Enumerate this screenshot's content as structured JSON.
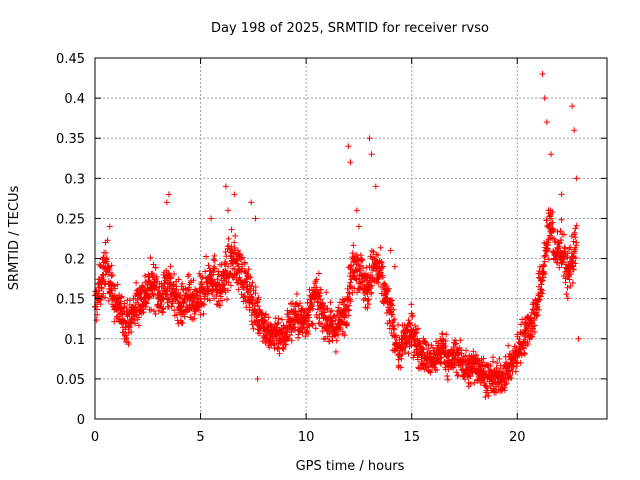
{
  "chart_data": {
    "type": "scatter",
    "title": "Day 198 of 2025, SRMTID for receiver rvso",
    "xlabel": "GPS time / hours",
    "ylabel": "SRMTID / TECUs",
    "xlim": [
      0,
      24.25
    ],
    "ylim": [
      0,
      0.45
    ],
    "xticks": [
      0,
      5,
      10,
      15,
      20
    ],
    "xtick_labels": [
      "0",
      "5",
      "10",
      "15",
      "20"
    ],
    "yticks": [
      0,
      0.05,
      0.1,
      0.15,
      0.2,
      0.25,
      0.3,
      0.35,
      0.4,
      0.45
    ],
    "ytick_labels": [
      "0",
      "0.05",
      "0.1",
      "0.15",
      "0.2",
      "0.25",
      "0.3",
      "0.35",
      "0.4",
      "0.45"
    ],
    "grid": true,
    "marker": "plus",
    "series": [
      {
        "name": "SRMTID",
        "color": "#ff0000",
        "x": [
          0.0,
          0.2,
          0.4,
          0.6,
          0.8,
          1.0,
          1.3,
          1.6,
          1.9,
          2.2,
          2.5,
          2.8,
          3.1,
          3.3,
          3.5,
          3.8,
          4.1,
          4.4,
          4.7,
          5.0,
          5.3,
          5.6,
          5.9,
          6.2,
          6.5,
          6.8,
          7.1,
          7.4,
          7.7,
          8.0,
          8.3,
          8.6,
          8.9,
          9.2,
          9.5,
          9.8,
          10.1,
          10.4,
          10.7,
          11.0,
          11.3,
          11.6,
          11.9,
          12.1,
          12.3,
          12.6,
          12.9,
          13.2,
          13.5,
          13.8,
          14.1,
          14.4,
          14.7,
          15.0,
          15.3,
          15.6,
          15.9,
          16.2,
          16.5,
          16.8,
          17.1,
          17.4,
          17.7,
          18.0,
          18.3,
          18.6,
          18.9,
          19.2,
          19.5,
          19.8,
          20.1,
          20.4,
          20.7,
          21.0,
          21.2,
          21.4,
          21.6,
          21.8,
          22.0,
          22.2,
          22.4,
          22.6,
          22.8
        ],
        "y": [
          0.14,
          0.16,
          0.18,
          0.19,
          0.16,
          0.14,
          0.13,
          0.12,
          0.14,
          0.15,
          0.16,
          0.17,
          0.15,
          0.16,
          0.17,
          0.15,
          0.14,
          0.15,
          0.14,
          0.15,
          0.17,
          0.18,
          0.16,
          0.18,
          0.2,
          0.19,
          0.17,
          0.15,
          0.13,
          0.12,
          0.1,
          0.11,
          0.1,
          0.12,
          0.13,
          0.12,
          0.13,
          0.15,
          0.14,
          0.12,
          0.11,
          0.12,
          0.14,
          0.17,
          0.2,
          0.18,
          0.16,
          0.19,
          0.18,
          0.15,
          0.12,
          0.08,
          0.1,
          0.11,
          0.09,
          0.08,
          0.07,
          0.08,
          0.09,
          0.07,
          0.08,
          0.07,
          0.06,
          0.07,
          0.06,
          0.05,
          0.05,
          0.05,
          0.06,
          0.07,
          0.09,
          0.11,
          0.12,
          0.15,
          0.18,
          0.22,
          0.25,
          0.2,
          0.22,
          0.2,
          0.18,
          0.2,
          0.22
        ]
      }
    ],
    "extra_points": {
      "x": [
        0.5,
        0.7,
        3.4,
        3.5,
        5.5,
        6.2,
        6.3,
        6.6,
        7.4,
        7.6,
        7.7,
        12.0,
        12.1,
        12.4,
        12.5,
        13.0,
        13.1,
        13.3,
        14.0,
        14.2,
        21.2,
        21.3,
        21.4,
        21.6,
        22.1,
        22.6,
        22.7,
        22.8,
        22.9
      ],
      "y": [
        0.22,
        0.24,
        0.27,
        0.28,
        0.25,
        0.29,
        0.26,
        0.28,
        0.27,
        0.25,
        0.05,
        0.34,
        0.32,
        0.26,
        0.24,
        0.35,
        0.33,
        0.29,
        0.21,
        0.19,
        0.43,
        0.4,
        0.37,
        0.33,
        0.28,
        0.39,
        0.36,
        0.3,
        0.1
      ]
    }
  }
}
